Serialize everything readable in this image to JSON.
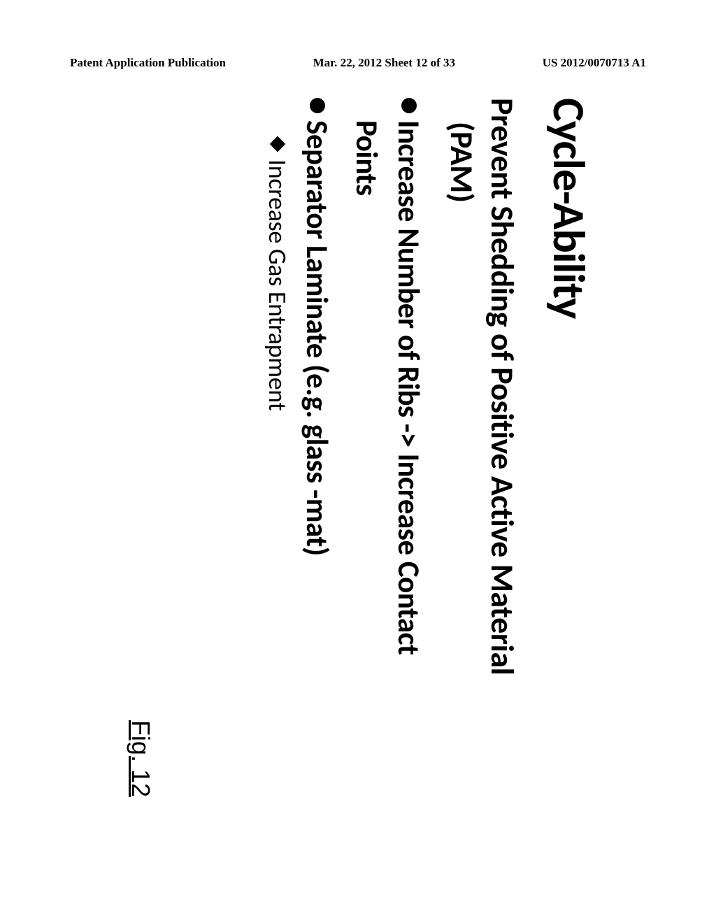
{
  "header": {
    "left": "Patent Application Publication",
    "center": "Mar. 22, 2012  Sheet 12 of 33",
    "right": "US 2012/0070713 A1"
  },
  "slide": {
    "title": "Cycle-Ability",
    "subtitle_line1": "Prevent Shedding of Positive Active Material",
    "subtitle_line2": "(PAM)",
    "bullets": [
      {
        "text": "Increase Number of Ribs -> Increase Contact",
        "continuation": "Points"
      },
      {
        "text": "Separator Laminate (e.g. glass -mat)",
        "sub_bullets": [
          "Increase Gas Entrapment"
        ]
      }
    ],
    "figure_label": "Fig. 12"
  },
  "styling": {
    "background_color": "#ffffff",
    "text_color": "#000000",
    "title_fontsize": 64,
    "subtitle_fontsize": 46,
    "bullet_fontsize": 43,
    "sub_bullet_fontsize": 36,
    "header_fontsize": 17,
    "figure_fontsize": 36,
    "font_family": "Calibri"
  }
}
